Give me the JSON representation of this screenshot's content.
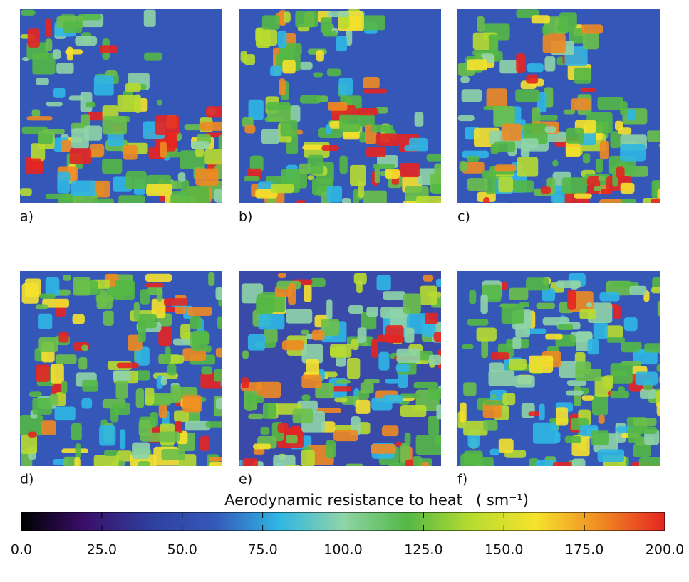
{
  "chart_data": {
    "type": "colorbar-figure",
    "panels": [
      "a)",
      "b)",
      "c)",
      "d)",
      "e)",
      "f)"
    ],
    "colorbar": {
      "title": "Aerodynamic resistance to heat",
      "unit": "( sm⁻¹)",
      "lim": [
        0,
        200
      ],
      "colors": [
        "#000000",
        "#3b0f6b",
        "#2e3f9e",
        "#3558b8",
        "#2fb6e4",
        "#8fd4a8",
        "#54b845",
        "#b8dc30",
        "#f6e22c",
        "#f08a22",
        "#e52521"
      ],
      "ticks": [
        {
          "value": 0,
          "label": "0.0"
        },
        {
          "value": 25,
          "label": "25.0"
        },
        {
          "value": 50,
          "label": "50.0"
        },
        {
          "value": 75,
          "label": "75.0"
        },
        {
          "value": 100,
          "label": "100.0"
        },
        {
          "value": 125,
          "label": "125.0"
        },
        {
          "value": 150,
          "label": "150.0"
        },
        {
          "value": 175,
          "label": "175.0"
        },
        {
          "value": 200,
          "label": "200.0"
        }
      ]
    }
  }
}
